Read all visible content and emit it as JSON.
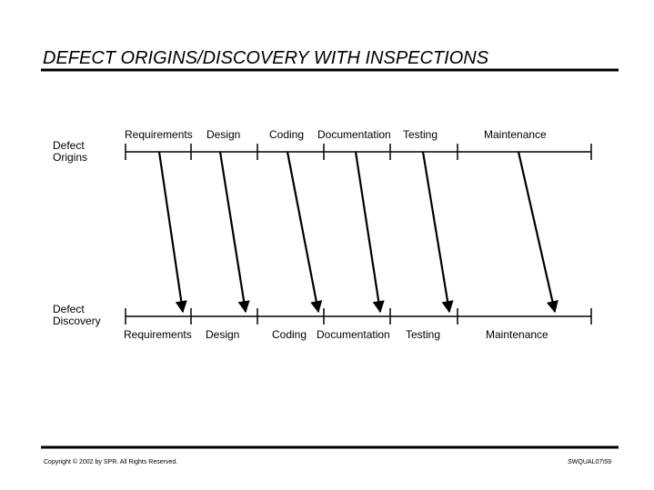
{
  "header": {
    "title": "DEFECT ORIGINS/DISCOVERY WITH INSPECTIONS"
  },
  "rows": {
    "origins": {
      "label": [
        "Defect",
        "Origins"
      ],
      "phases": [
        "Requirements",
        "Design",
        "Coding",
        "Documentation",
        "Testing",
        "Maintenance"
      ]
    },
    "discovery": {
      "label": [
        "Defect",
        "Discovery"
      ],
      "phases": [
        "Requirements",
        "Design",
        "Coding",
        "Documentation",
        "Testing",
        "Maintenance"
      ]
    }
  },
  "footer": {
    "copyright": "Copyright © 2002 by SPR.  All Rights Reserved.",
    "slide_id": "SWQUAL07\\59"
  }
}
